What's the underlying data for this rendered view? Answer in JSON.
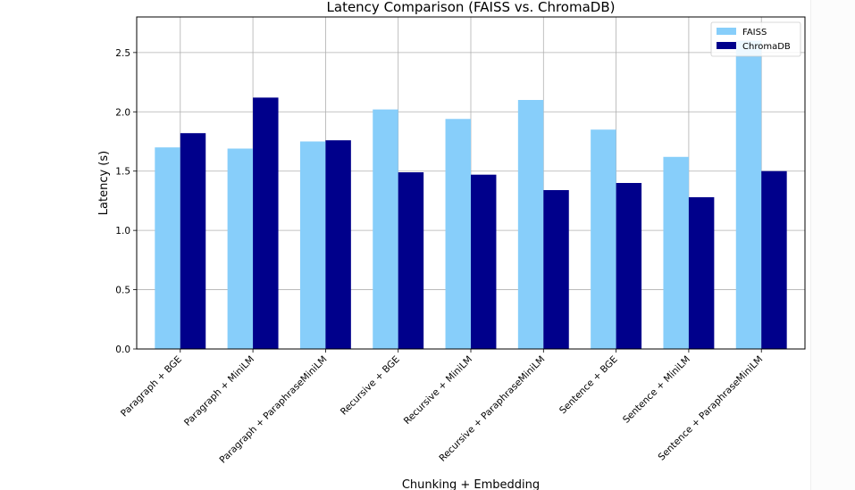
{
  "chart_data": {
    "type": "bar",
    "title": "Latency Comparison (FAISS vs. ChromaDB)",
    "xlabel": "Chunking + Embedding",
    "ylabel": "Latency (s)",
    "categories": [
      "Paragraph + BGE",
      "Paragraph + MiniLM",
      "Paragraph + ParaphraseMiniLM",
      "Recursive + BGE",
      "Recursive + MiniLM",
      "Recursive + ParaphraseMiniLM",
      "Sentence + BGE",
      "Sentence + MiniLM",
      "Sentence + ParaphraseMiniLM"
    ],
    "series": [
      {
        "name": "FAISS",
        "color": "#87cefa",
        "values": [
          1.7,
          1.69,
          1.75,
          2.02,
          1.94,
          2.1,
          1.85,
          1.62,
          2.6
        ]
      },
      {
        "name": "ChromaDB",
        "color": "#00008b",
        "values": [
          1.82,
          2.12,
          1.76,
          1.49,
          1.47,
          1.34,
          1.4,
          1.28,
          1.5
        ]
      }
    ],
    "ylim": [
      0,
      2.8
    ],
    "yticks": [
      "0.0",
      "0.5",
      "1.0",
      "1.5",
      "2.0",
      "2.5"
    ],
    "grid": true,
    "legend_position": "top-right"
  }
}
